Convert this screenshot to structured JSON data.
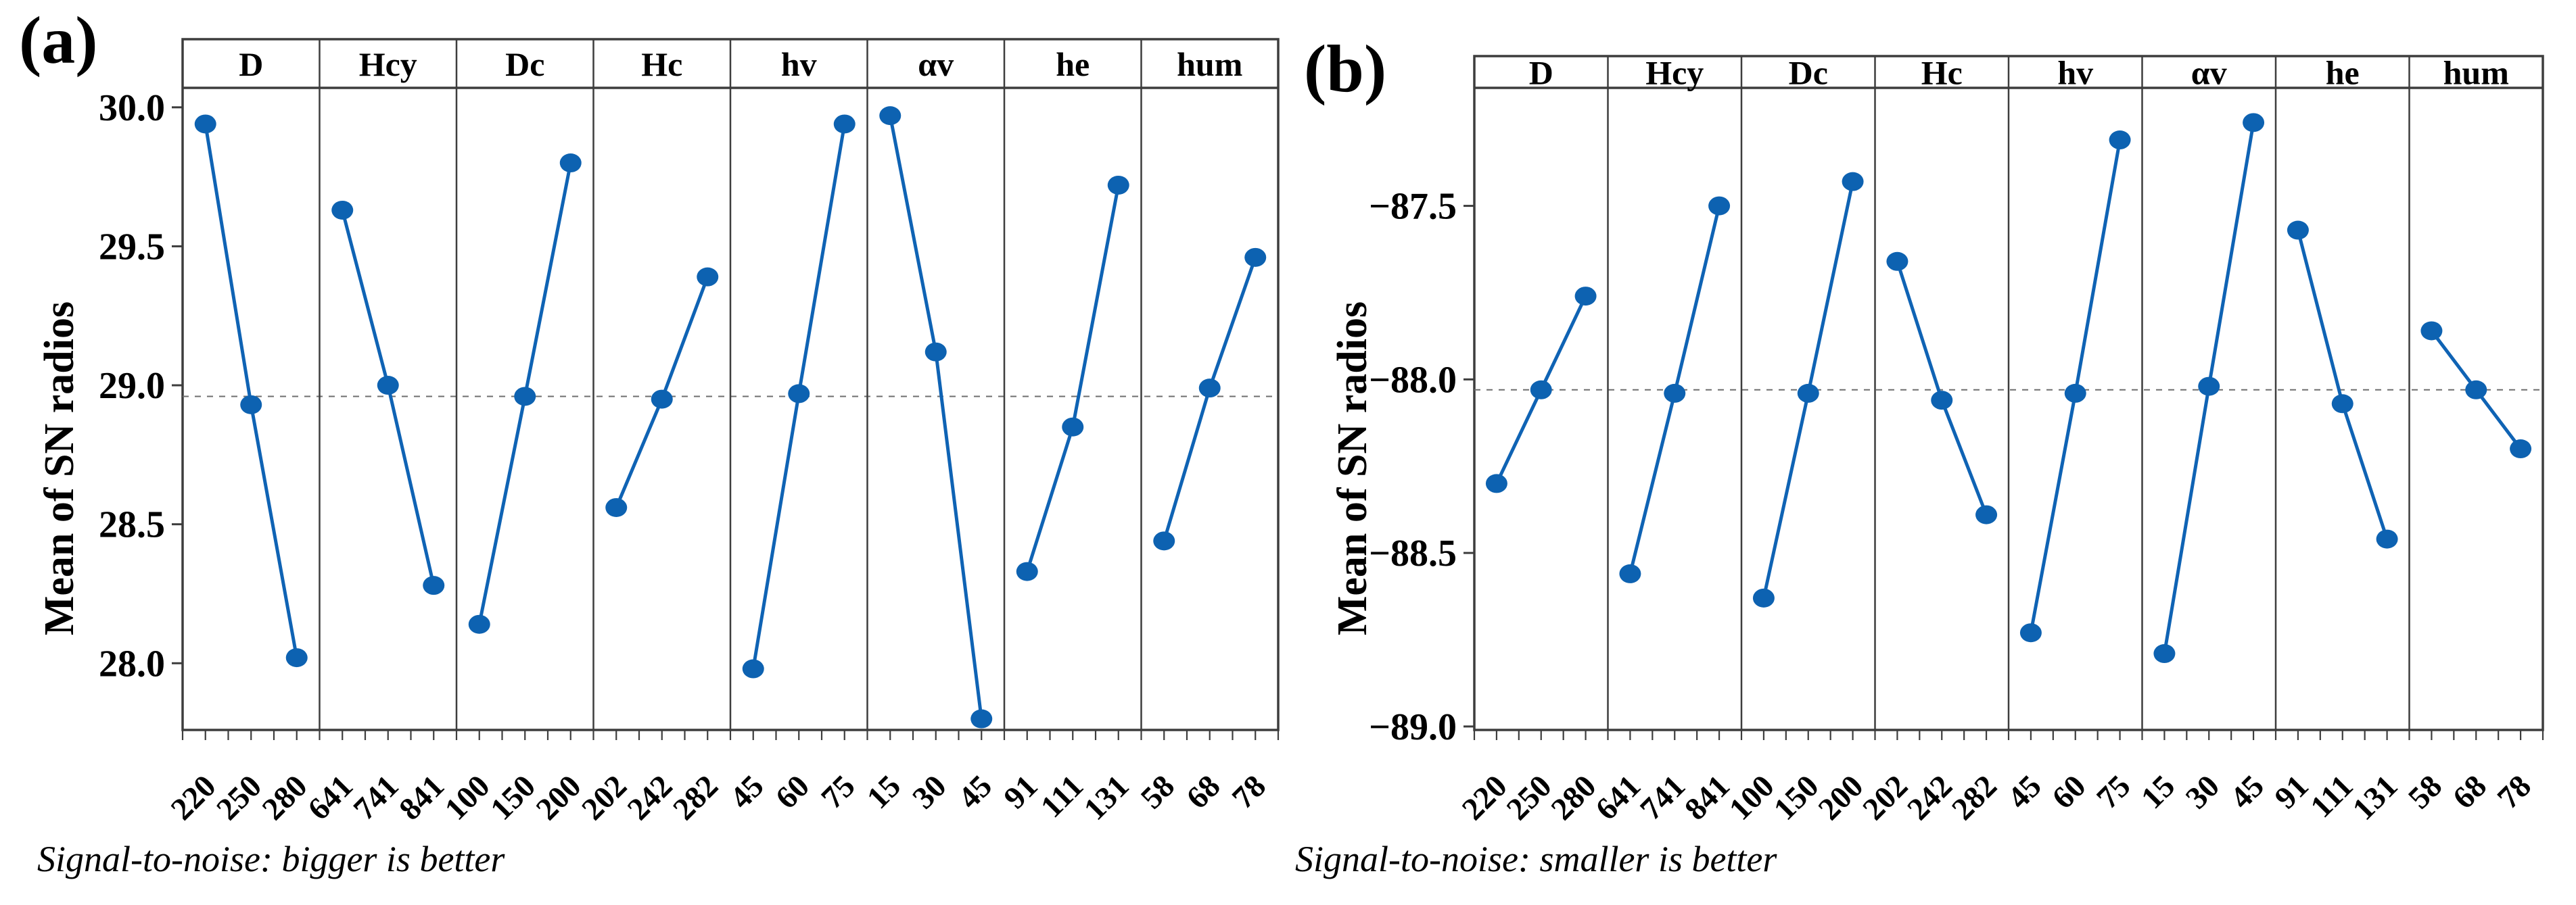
{
  "figure": {
    "marker_color": "#0d62b1",
    "line_color": "#0f63b4",
    "frame_color": "#3d3d3d",
    "mean_line_color": "#6e6e6e",
    "text_color": "#000000"
  },
  "chart_data": [
    {
      "type": "line",
      "panel_label": "(a)",
      "ylabel": "Mean of SN radios",
      "caption": "Signal-to-noise: bigger is better",
      "ylim": [
        27.76,
        30.07
      ],
      "yticks": [
        30.0,
        29.5,
        29.0,
        28.5,
        28.0
      ],
      "ytick_labels": [
        "30.0",
        "29.5",
        "29.0",
        "28.5",
        "28.0"
      ],
      "mean_line": 28.96,
      "grid": false,
      "legend": "none",
      "factors": [
        {
          "name": "D",
          "levels": [
            "220",
            "250",
            "280"
          ],
          "values": [
            29.94,
            28.93,
            28.02
          ]
        },
        {
          "name": "Hcy",
          "levels": [
            "641",
            "741",
            "841"
          ],
          "values": [
            29.63,
            29.0,
            28.28
          ]
        },
        {
          "name": "Dc",
          "levels": [
            "100",
            "150",
            "200"
          ],
          "values": [
            28.14,
            28.96,
            29.8
          ]
        },
        {
          "name": "Hc",
          "levels": [
            "202",
            "242",
            "282"
          ],
          "values": [
            28.56,
            28.95,
            29.39
          ]
        },
        {
          "name": "hv",
          "levels": [
            "45",
            "60",
            "75"
          ],
          "values": [
            27.98,
            28.97,
            29.94
          ]
        },
        {
          "name": "αv",
          "levels": [
            "15",
            "30",
            "45"
          ],
          "values": [
            29.97,
            29.12,
            27.8
          ]
        },
        {
          "name": "he",
          "levels": [
            "91",
            "111",
            "131"
          ],
          "values": [
            28.33,
            28.85,
            29.72
          ]
        },
        {
          "name": "hum",
          "levels": [
            "58",
            "68",
            "78"
          ],
          "values": [
            28.44,
            28.99,
            29.46
          ]
        }
      ]
    },
    {
      "type": "line",
      "panel_label": "(b)",
      "ylabel": "Mean of SN radios",
      "caption": "Signal-to-noise: smaller is better",
      "ylim": [
        -89.01,
        -87.16
      ],
      "yticks": [
        -87.5,
        -88.0,
        -88.5,
        -89.0
      ],
      "ytick_labels": [
        "−87.5",
        "−88.0",
        "−88.5",
        "−89.0"
      ],
      "mean_line": -88.03,
      "grid": false,
      "legend": "none",
      "factors": [
        {
          "name": "D",
          "levels": [
            "220",
            "250",
            "280"
          ],
          "values": [
            -88.3,
            -88.03,
            -87.76
          ]
        },
        {
          "name": "Hcy",
          "levels": [
            "641",
            "741",
            "841"
          ],
          "values": [
            -88.56,
            -88.04,
            -87.5
          ]
        },
        {
          "name": "Dc",
          "levels": [
            "100",
            "150",
            "200"
          ],
          "values": [
            -88.63,
            -88.04,
            -87.43
          ]
        },
        {
          "name": "Hc",
          "levels": [
            "202",
            "242",
            "282"
          ],
          "values": [
            -87.66,
            -88.06,
            -88.39
          ]
        },
        {
          "name": "hv",
          "levels": [
            "45",
            "60",
            "75"
          ],
          "values": [
            -88.73,
            -88.04,
            -87.31
          ]
        },
        {
          "name": "αv",
          "levels": [
            "15",
            "30",
            "45"
          ],
          "values": [
            -88.79,
            -88.02,
            -87.26
          ]
        },
        {
          "name": "he",
          "levels": [
            "91",
            "111",
            "131"
          ],
          "values": [
            -87.57,
            -88.07,
            -88.46
          ]
        },
        {
          "name": "hum",
          "levels": [
            "58",
            "68",
            "78"
          ],
          "values": [
            -87.86,
            -88.03,
            -88.2
          ]
        }
      ]
    }
  ]
}
